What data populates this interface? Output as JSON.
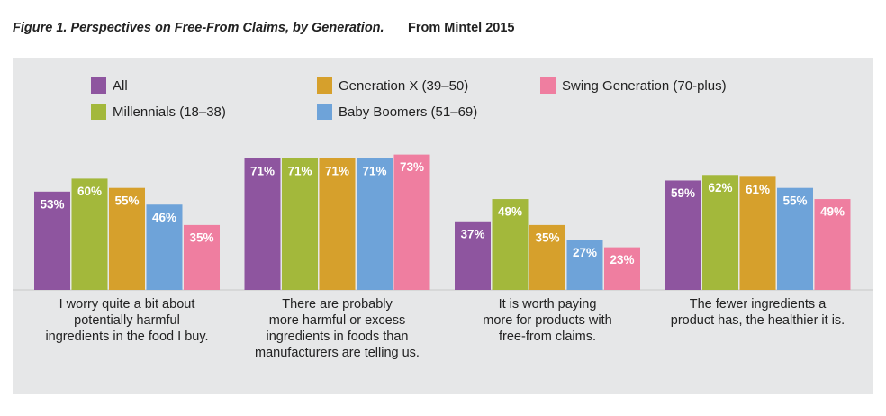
{
  "chart_data": {
    "type": "bar",
    "title": "Figure 1. Perspectives on Free-From Claims, by Generation.",
    "source": "From Mintel 2015",
    "categories": [
      "I worry quite a bit about\npotentially harmful\ningredients in the food I buy.",
      "There are probably\nmore harmful or excess\ningredients in foods than\nmanufacturers are telling us.",
      "It is worth paying\nmore for products with\nfree-from claims.",
      "The fewer ingredients a\nproduct has, the healthier it is."
    ],
    "series": [
      {
        "name": "All",
        "color": "#8e559f",
        "values": [
          53,
          71,
          37,
          59
        ],
        "value_labels": [
          "53%",
          "71%",
          "37%",
          "59%"
        ]
      },
      {
        "name": "Millennials (18–38)",
        "color": "#a3b83b",
        "values": [
          60,
          71,
          49,
          62
        ],
        "value_labels": [
          "60%",
          "71%",
          "49%",
          "62%"
        ]
      },
      {
        "name": "Generation X (39–50)",
        "color": "#d6a02c",
        "values": [
          55,
          71,
          35,
          61
        ],
        "value_labels": [
          "55%",
          "71%",
          "35%",
          "61%"
        ]
      },
      {
        "name": "Baby Boomers (51–69)",
        "color": "#6ea3d9",
        "values": [
          46,
          71,
          27,
          55
        ],
        "value_labels": [
          "46%",
          "71%",
          "27%",
          "55%"
        ]
      },
      {
        "name": "Swing Generation (70-plus)",
        "color": "#ef7ea0",
        "values": [
          35,
          73,
          23,
          49
        ],
        "value_labels": [
          "35%",
          "73%",
          "23%",
          "49%"
        ]
      }
    ]
  }
}
